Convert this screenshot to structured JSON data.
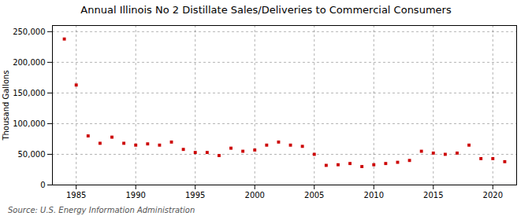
{
  "chart_data": {
    "type": "scatter",
    "title": "Annual Illinois No 2 Distillate Sales/Deliveries to Commercial Consumers",
    "ylabel": "Thousand Gallons",
    "source": "Source: U.S. Energy Information Administration",
    "x": [
      1984,
      1985,
      1986,
      1987,
      1988,
      1989,
      1990,
      1991,
      1992,
      1993,
      1994,
      1995,
      1996,
      1997,
      1998,
      1999,
      2000,
      2001,
      2002,
      2003,
      2004,
      2005,
      2006,
      2007,
      2008,
      2009,
      2010,
      2011,
      2012,
      2013,
      2014,
      2015,
      2016,
      2017,
      2018,
      2019,
      2020,
      2021
    ],
    "values": [
      238000,
      163000,
      80000,
      68000,
      78000,
      68000,
      65000,
      67000,
      65000,
      70000,
      58000,
      53000,
      53000,
      48000,
      60000,
      55000,
      57000,
      65000,
      70000,
      65000,
      63000,
      50000,
      32000,
      33000,
      35000,
      30000,
      33000,
      35000,
      37000,
      40000,
      55000,
      52000,
      50000,
      52000,
      65000,
      43000,
      43000,
      38000
    ],
    "color": "#cc0000",
    "marker": "square",
    "xlim": [
      1983,
      2022
    ],
    "ylim": [
      0,
      260000
    ],
    "xticks": [
      1985,
      1990,
      1995,
      2000,
      2005,
      2010,
      2015,
      2020
    ],
    "yticks": [
      0,
      {
        "value": 50000,
        "label": "50,000"
      },
      {
        "value": 100000,
        "label": "100,000"
      },
      {
        "value": 150000,
        "label": "150,000"
      },
      {
        "value": 200000,
        "label": "200,000"
      },
      {
        "value": 250000,
        "label": "250,000"
      }
    ],
    "grid": true
  }
}
